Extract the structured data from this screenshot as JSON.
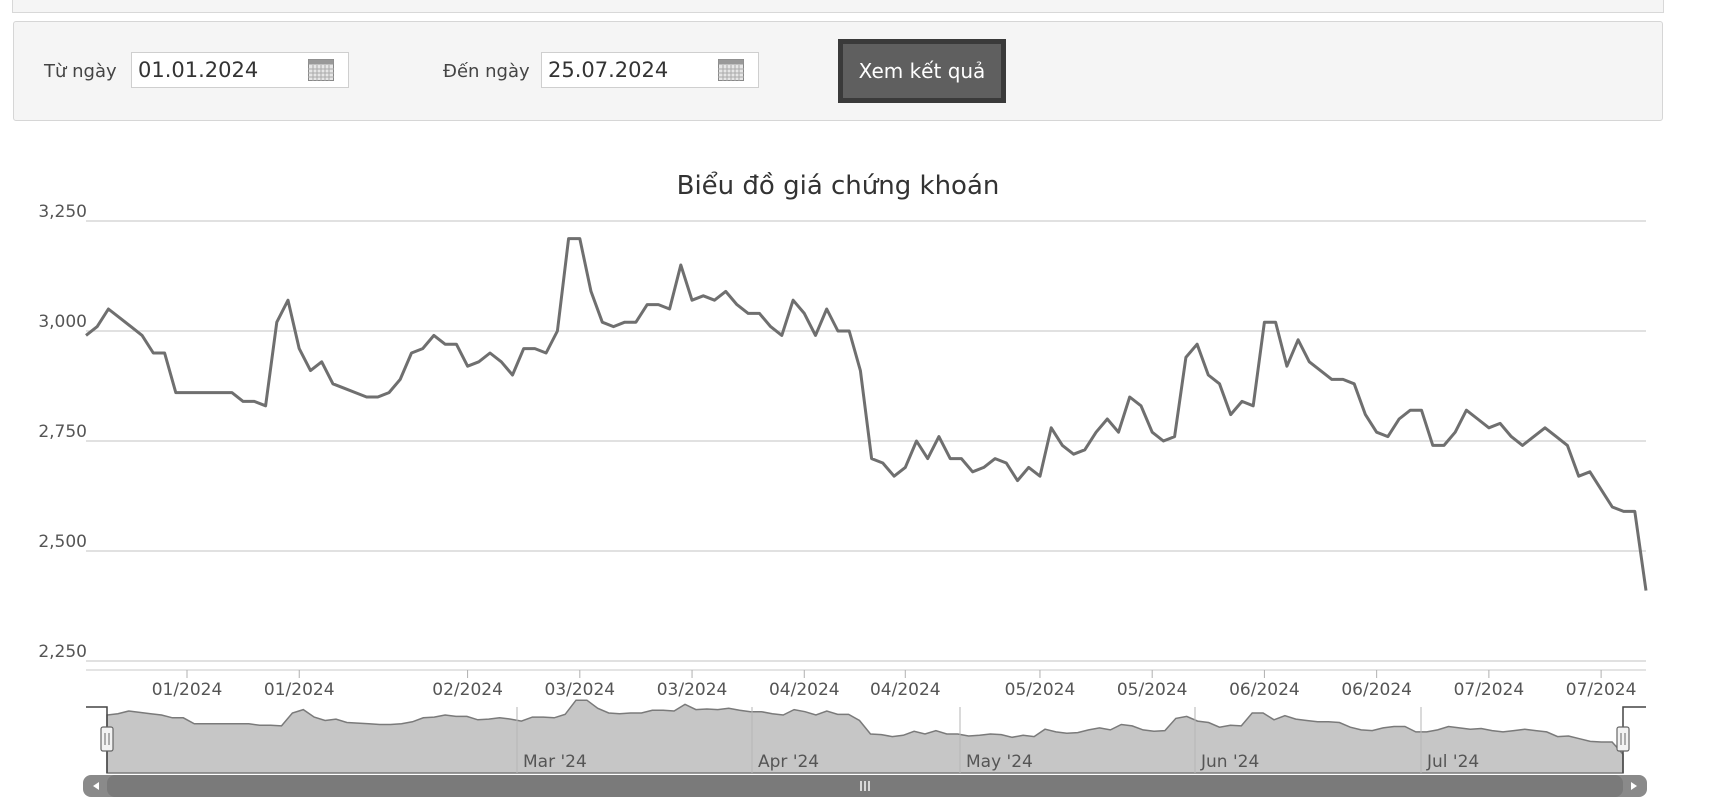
{
  "filter": {
    "from_label": "Từ ngày",
    "from_value": "01.01.2024",
    "to_label": "Đến ngày",
    "to_value": "25.07.2024",
    "submit_label": "Xem kết quả"
  },
  "chart_data": {
    "type": "line",
    "title": "Biểu đồ giá chứng khoán",
    "xlabel": "",
    "ylabel": "",
    "ylim": [
      2250,
      3250
    ],
    "y_ticks": [
      "3,250",
      "3,000",
      "2,750",
      "2,500",
      "2,250"
    ],
    "y_tick_values": [
      3250,
      3000,
      2750,
      2500,
      2250
    ],
    "x_tick_labels": [
      "01/2024",
      "01/2024",
      "02/2024",
      "03/2024",
      "03/2024",
      "04/2024",
      "04/2024",
      "05/2024",
      "05/2024",
      "06/2024",
      "06/2024",
      "07/2024",
      "07/2024"
    ],
    "x_tick_index": [
      9,
      19,
      34,
      44,
      54,
      64,
      73,
      85,
      95,
      105,
      115,
      125,
      135
    ],
    "navigator_labels": [
      "Mar '24",
      "Apr '24",
      "May '24",
      "Jun '24",
      "Jul '24"
    ],
    "grid": true,
    "line_color": "#6f6f6f",
    "values": [
      2990,
      3010,
      3050,
      3030,
      3010,
      2990,
      2950,
      2950,
      2860,
      2860,
      2860,
      2860,
      2860,
      2860,
      2840,
      2840,
      2830,
      3020,
      3070,
      2960,
      2910,
      2930,
      2880,
      2870,
      2860,
      2850,
      2850,
      2860,
      2890,
      2950,
      2960,
      2990,
      2970,
      2970,
      2920,
      2930,
      2950,
      2930,
      2900,
      2960,
      2960,
      2950,
      3000,
      3210,
      3210,
      3090,
      3020,
      3010,
      3020,
      3020,
      3060,
      3060,
      3050,
      3150,
      3070,
      3080,
      3070,
      3090,
      3060,
      3040,
      3040,
      3010,
      2990,
      3070,
      3040,
      2990,
      3050,
      3000,
      3000,
      2910,
      2710,
      2700,
      2670,
      2690,
      2750,
      2710,
      2760,
      2710,
      2710,
      2680,
      2690,
      2710,
      2700,
      2660,
      2690,
      2670,
      2780,
      2740,
      2720,
      2730,
      2770,
      2800,
      2770,
      2850,
      2830,
      2770,
      2750,
      2760,
      2940,
      2970,
      2900,
      2880,
      2810,
      2840,
      2830,
      3020,
      3020,
      2920,
      2980,
      2930,
      2910,
      2890,
      2890,
      2880,
      2810,
      2770,
      2760,
      2800,
      2820,
      2820,
      2740,
      2740,
      2770,
      2820,
      2800,
      2780,
      2790,
      2760,
      2740,
      2760,
      2780,
      2760,
      2740,
      2670,
      2680,
      2640,
      2600,
      2590,
      2590,
      2410
    ]
  }
}
